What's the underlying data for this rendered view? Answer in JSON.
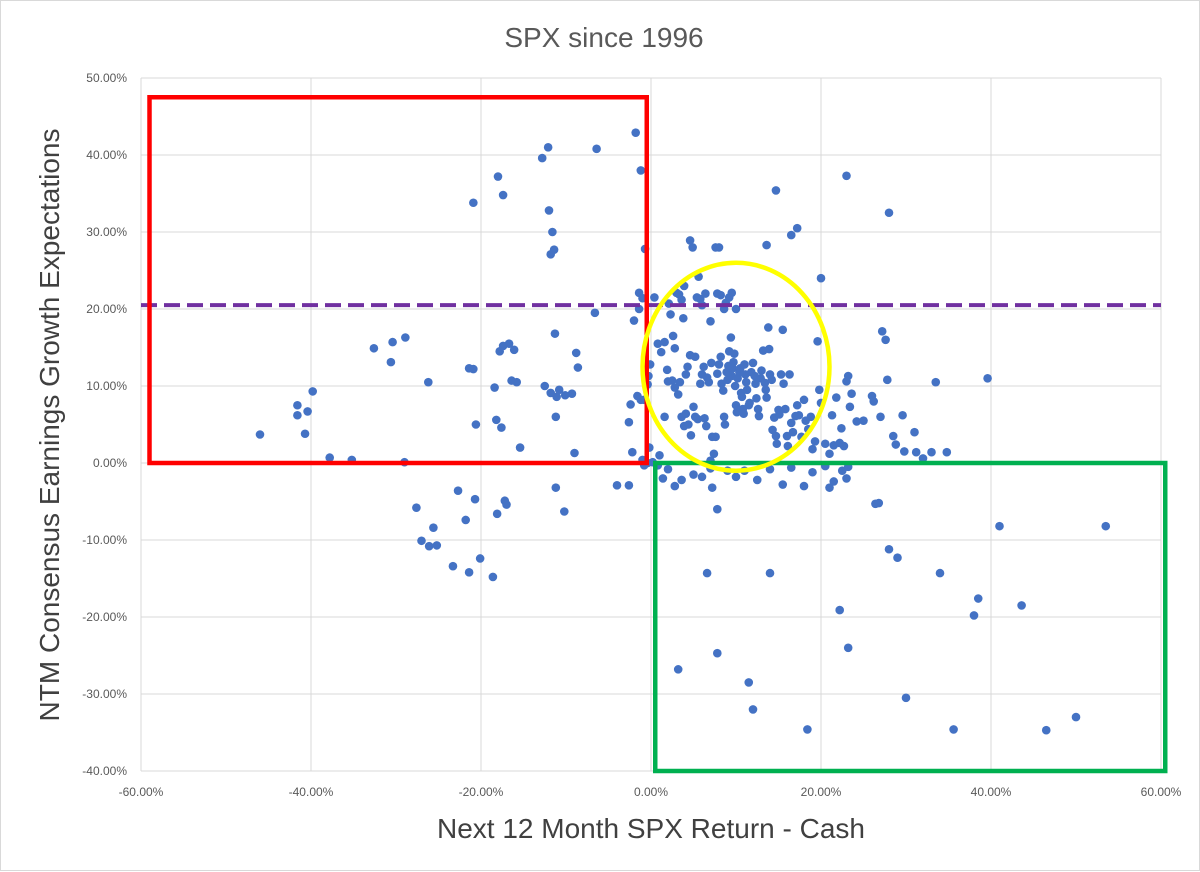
{
  "chart_data": {
    "type": "scatter",
    "title": "SPX since 1996",
    "xlabel": "Next 12 Month SPX Return - Cash",
    "ylabel": "NTM Consensus Earnings Growth Expectations",
    "xlim": [
      -0.6,
      0.6
    ],
    "ylim": [
      -0.4,
      0.5
    ],
    "x_ticks": [
      -0.6,
      -0.4,
      -0.2,
      0.0,
      0.2,
      0.4,
      0.6
    ],
    "x_tick_labels": [
      "-60.00%",
      "-40.00%",
      "-20.00%",
      "0.00%",
      "20.00%",
      "40.00%",
      "60.00%"
    ],
    "y_ticks": [
      -0.4,
      -0.3,
      -0.2,
      -0.1,
      0.0,
      0.1,
      0.2,
      0.3,
      0.4,
      0.5
    ],
    "y_tick_labels": [
      "-40.00%",
      "-30.00%",
      "-20.00%",
      "-10.00%",
      "0.00%",
      "10.00%",
      "20.00%",
      "30.00%",
      "40.00%",
      "50.00%"
    ],
    "grid": true,
    "legend": "none",
    "marker_color": "#4472C4",
    "reference_line": {
      "y": 0.205,
      "style": "dashed",
      "color": "#7030A0"
    },
    "annotations": [
      {
        "shape": "rect",
        "x": [
          -0.59,
          -0.005
        ],
        "y": [
          0.0,
          0.475
        ],
        "color": "#FF0000"
      },
      {
        "shape": "rect",
        "x": [
          0.005,
          0.605
        ],
        "y": [
          -0.4,
          0.0
        ],
        "color": "#00B050"
      },
      {
        "shape": "circle",
        "cx": 0.1,
        "cy": 0.125,
        "rx": 0.11,
        "ry": 0.135,
        "color": "#FFFF00"
      }
    ],
    "points": [
      [
        -0.46,
        0.037
      ],
      [
        -0.416,
        0.075
      ],
      [
        -0.416,
        0.062
      ],
      [
        -0.404,
        0.067
      ],
      [
        -0.398,
        0.093
      ],
      [
        -0.407,
        0.038
      ],
      [
        -0.378,
        0.007
      ],
      [
        -0.352,
        0.004
      ],
      [
        -0.326,
        0.149
      ],
      [
        -0.306,
        0.131
      ],
      [
        -0.304,
        0.157
      ],
      [
        -0.289,
        0.163
      ],
      [
        -0.262,
        0.105
      ],
      [
        -0.29,
        0.001
      ],
      [
        -0.276,
        -0.058
      ],
      [
        -0.27,
        -0.101
      ],
      [
        -0.261,
        -0.108
      ],
      [
        -0.256,
        -0.084
      ],
      [
        -0.252,
        -0.107
      ],
      [
        -0.233,
        -0.134
      ],
      [
        -0.227,
        -0.036
      ],
      [
        -0.218,
        -0.074
      ],
      [
        -0.214,
        -0.142
      ],
      [
        -0.207,
        -0.047
      ],
      [
        -0.201,
        -0.124
      ],
      [
        -0.186,
        -0.148
      ],
      [
        -0.181,
        -0.066
      ],
      [
        -0.172,
        -0.049
      ],
      [
        -0.17,
        -0.054
      ],
      [
        -0.184,
        0.098
      ],
      [
        -0.178,
        0.145
      ],
      [
        -0.174,
        0.152
      ],
      [
        -0.167,
        0.155
      ],
      [
        -0.161,
        0.147
      ],
      [
        -0.164,
        0.107
      ],
      [
        -0.158,
        0.105
      ],
      [
        -0.154,
        0.02
      ],
      [
        -0.214,
        0.123
      ],
      [
        -0.209,
        0.122
      ],
      [
        -0.206,
        0.05
      ],
      [
        -0.182,
        0.056
      ],
      [
        -0.176,
        0.046
      ],
      [
        -0.209,
        0.338
      ],
      [
        -0.18,
        0.372
      ],
      [
        -0.174,
        0.348
      ],
      [
        -0.128,
        0.396
      ],
      [
        -0.121,
        0.41
      ],
      [
        -0.12,
        0.328
      ],
      [
        -0.116,
        0.3
      ],
      [
        -0.118,
        0.271
      ],
      [
        -0.114,
        0.277
      ],
      [
        -0.113,
        0.168
      ],
      [
        -0.125,
        0.1
      ],
      [
        -0.118,
        0.091
      ],
      [
        -0.111,
        0.086
      ],
      [
        -0.108,
        0.095
      ],
      [
        -0.101,
        0.088
      ],
      [
        -0.093,
        0.09
      ],
      [
        -0.088,
        0.143
      ],
      [
        -0.086,
        0.124
      ],
      [
        -0.09,
        0.013
      ],
      [
        -0.112,
        -0.032
      ],
      [
        -0.102,
        -0.063
      ],
      [
        -0.112,
        0.06
      ],
      [
        -0.064,
        0.408
      ],
      [
        -0.066,
        0.195
      ],
      [
        -0.018,
        0.429
      ],
      [
        -0.012,
        0.38
      ],
      [
        -0.007,
        0.278
      ],
      [
        -0.04,
        -0.029
      ],
      [
        -0.026,
        -0.029
      ],
      [
        -0.022,
        0.014
      ],
      [
        -0.026,
        0.053
      ],
      [
        -0.024,
        0.076
      ],
      [
        -0.02,
        0.185
      ],
      [
        -0.014,
        0.2
      ],
      [
        -0.01,
        0.214
      ],
      [
        -0.014,
        0.221
      ],
      [
        -0.008,
        -0.003
      ],
      [
        -0.004,
        0.0
      ],
      [
        -0.002,
        0.02
      ],
      [
        -0.004,
        0.102
      ],
      [
        -0.003,
        0.113
      ],
      [
        -0.001,
        0.128
      ],
      [
        -0.008,
        0.082
      ],
      [
        -0.012,
        0.082
      ],
      [
        -0.016,
        0.087
      ],
      [
        -0.01,
        0.004
      ],
      [
        0.004,
        0.215
      ],
      [
        0.008,
        0.155
      ],
      [
        0.012,
        0.144
      ],
      [
        0.016,
        0.157
      ],
      [
        0.019,
        0.121
      ],
      [
        0.021,
        0.207
      ],
      [
        0.023,
        0.193
      ],
      [
        0.026,
        0.165
      ],
      [
        0.028,
        0.149
      ],
      [
        0.03,
        0.221
      ],
      [
        0.033,
        0.219
      ],
      [
        0.036,
        0.212
      ],
      [
        0.038,
        0.188
      ],
      [
        0.039,
        0.23
      ],
      [
        0.041,
        0.115
      ],
      [
        0.043,
        0.125
      ],
      [
        0.046,
        0.14
      ],
      [
        0.049,
        0.28
      ],
      [
        0.046,
        0.289
      ],
      [
        0.052,
        0.138
      ],
      [
        0.054,
        0.215
      ],
      [
        0.056,
        0.242
      ],
      [
        0.058,
        0.213
      ],
      [
        0.06,
        0.205
      ],
      [
        0.064,
        0.22
      ],
      [
        0.07,
        0.184
      ],
      [
        0.071,
        0.13
      ],
      [
        0.076,
        0.28
      ],
      [
        0.078,
        0.22
      ],
      [
        0.082,
        0.218
      ],
      [
        0.086,
        0.2
      ],
      [
        0.088,
        0.208
      ],
      [
        0.092,
        0.215
      ],
      [
        0.095,
        0.221
      ],
      [
        0.1,
        0.2
      ],
      [
        0.01,
        0.01
      ],
      [
        0.016,
        0.06
      ],
      [
        0.02,
        0.106
      ],
      [
        0.025,
        0.107
      ],
      [
        0.028,
        0.098
      ],
      [
        0.032,
        0.089
      ],
      [
        0.034,
        0.105
      ],
      [
        0.036,
        0.06
      ],
      [
        0.039,
        0.048
      ],
      [
        0.041,
        0.064
      ],
      [
        0.044,
        0.05
      ],
      [
        0.047,
        0.036
      ],
      [
        0.05,
        0.073
      ],
      [
        0.052,
        0.06
      ],
      [
        0.055,
        0.057
      ],
      [
        0.058,
        0.103
      ],
      [
        0.06,
        0.115
      ],
      [
        0.062,
        0.125
      ],
      [
        0.063,
        0.058
      ],
      [
        0.065,
        0.048
      ],
      [
        0.066,
        0.111
      ],
      [
        0.068,
        0.105
      ],
      [
        0.07,
        0.003
      ],
      [
        0.072,
        0.034
      ],
      [
        0.074,
        0.012
      ],
      [
        0.076,
        0.034
      ],
      [
        0.078,
        0.116
      ],
      [
        0.08,
        0.128
      ],
      [
        0.082,
        0.138
      ],
      [
        0.083,
        0.103
      ],
      [
        0.085,
        0.094
      ],
      [
        0.086,
        0.06
      ],
      [
        0.087,
        0.05
      ],
      [
        0.089,
        0.118
      ],
      [
        0.09,
        0.108
      ],
      [
        0.091,
        0.126
      ],
      [
        0.092,
        0.145
      ],
      [
        0.094,
        0.163
      ],
      [
        0.095,
        0.113
      ],
      [
        0.096,
        0.123
      ],
      [
        0.097,
        0.131
      ],
      [
        0.098,
        0.142
      ],
      [
        0.099,
        0.1
      ],
      [
        0.1,
        0.075
      ],
      [
        0.101,
        0.066
      ],
      [
        0.102,
        0.11
      ],
      [
        0.104,
        0.118
      ],
      [
        0.105,
        0.123
      ],
      [
        0.106,
        0.091
      ],
      [
        0.107,
        0.086
      ],
      [
        0.108,
        0.07
      ],
      [
        0.109,
        0.064
      ],
      [
        0.11,
        0.128
      ],
      [
        0.111,
        0.115
      ],
      [
        0.112,
        0.105
      ],
      [
        0.113,
        0.095
      ],
      [
        0.115,
        0.075
      ],
      [
        0.116,
        0.078
      ],
      [
        0.118,
        0.118
      ],
      [
        0.12,
        0.13
      ],
      [
        0.122,
        0.113
      ],
      [
        0.123,
        0.103
      ],
      [
        0.124,
        0.084
      ],
      [
        0.126,
        0.07
      ],
      [
        0.127,
        0.061
      ],
      [
        0.129,
        0.11
      ],
      [
        0.13,
        0.12
      ],
      [
        0.132,
        0.146
      ],
      [
        0.134,
        0.104
      ],
      [
        0.135,
        0.095
      ],
      [
        0.136,
        0.085
      ],
      [
        0.138,
        0.176
      ],
      [
        0.139,
        0.148
      ],
      [
        0.14,
        0.115
      ],
      [
        0.142,
        0.108
      ],
      [
        0.143,
        0.043
      ],
      [
        0.145,
        0.059
      ],
      [
        0.147,
        0.035
      ],
      [
        0.148,
        0.025
      ],
      [
        0.15,
        0.069
      ],
      [
        0.151,
        0.063
      ],
      [
        0.153,
        0.115
      ],
      [
        0.155,
        0.173
      ],
      [
        0.156,
        0.103
      ],
      [
        0.158,
        0.07
      ],
      [
        0.16,
        0.035
      ],
      [
        0.161,
        0.022
      ],
      [
        0.163,
        0.115
      ],
      [
        0.165,
        0.052
      ],
      [
        0.167,
        0.04
      ],
      [
        0.17,
        0.061
      ],
      [
        0.172,
        0.075
      ],
      [
        0.174,
        0.062
      ],
      [
        0.177,
        0.034
      ],
      [
        0.18,
        0.082
      ],
      [
        0.182,
        0.055
      ],
      [
        0.185,
        0.044
      ],
      [
        0.188,
        0.06
      ],
      [
        0.19,
        0.018
      ],
      [
        0.193,
        0.028
      ],
      [
        0.196,
        0.158
      ],
      [
        0.198,
        0.095
      ],
      [
        0.2,
        0.078
      ],
      [
        0.205,
        0.025
      ],
      [
        0.21,
        0.012
      ],
      [
        0.213,
        0.062
      ],
      [
        0.215,
        0.023
      ],
      [
        0.218,
        0.085
      ],
      [
        0.222,
        0.026
      ],
      [
        0.224,
        0.045
      ],
      [
        0.227,
        0.022
      ],
      [
        0.23,
        0.106
      ],
      [
        0.232,
        0.113
      ],
      [
        0.234,
        0.073
      ],
      [
        0.236,
        0.09
      ],
      [
        0.242,
        0.054
      ],
      [
        0.25,
        0.055
      ],
      [
        0.26,
        0.087
      ],
      [
        0.262,
        0.08
      ],
      [
        0.27,
        0.06
      ],
      [
        0.272,
        0.171
      ],
      [
        0.276,
        0.16
      ],
      [
        0.278,
        0.108
      ],
      [
        0.285,
        0.035
      ],
      [
        0.288,
        0.024
      ],
      [
        0.296,
        0.062
      ],
      [
        0.298,
        0.015
      ],
      [
        0.31,
        0.04
      ],
      [
        0.312,
        0.014
      ],
      [
        0.32,
        0.006
      ],
      [
        0.33,
        0.014
      ],
      [
        0.335,
        0.105
      ],
      [
        0.348,
        0.014
      ],
      [
        0.396,
        0.11
      ],
      [
        0.147,
        0.354
      ],
      [
        0.136,
        0.283
      ],
      [
        0.165,
        0.296
      ],
      [
        0.172,
        0.305
      ],
      [
        0.23,
        0.373
      ],
      [
        0.28,
        0.325
      ],
      [
        0.2,
        0.24
      ],
      [
        0.08,
        0.28
      ],
      [
        0.002,
        0.001
      ],
      [
        0.008,
        -0.003
      ],
      [
        0.014,
        -0.02
      ],
      [
        0.02,
        -0.008
      ],
      [
        0.028,
        -0.03
      ],
      [
        0.036,
        -0.022
      ],
      [
        0.05,
        -0.015
      ],
      [
        0.06,
        -0.018
      ],
      [
        0.07,
        -0.007
      ],
      [
        0.072,
        -0.032
      ],
      [
        0.078,
        -0.06
      ],
      [
        0.09,
        -0.01
      ],
      [
        0.1,
        -0.018
      ],
      [
        0.11,
        -0.01
      ],
      [
        0.125,
        -0.022
      ],
      [
        0.14,
        -0.008
      ],
      [
        0.155,
        -0.028
      ],
      [
        0.165,
        -0.006
      ],
      [
        0.18,
        -0.03
      ],
      [
        0.19,
        -0.012
      ],
      [
        0.205,
        -0.004
      ],
      [
        0.21,
        -0.032
      ],
      [
        0.215,
        -0.024
      ],
      [
        0.225,
        -0.01
      ],
      [
        0.23,
        -0.02
      ],
      [
        0.232,
        -0.005
      ],
      [
        0.264,
        -0.053
      ],
      [
        0.268,
        -0.052
      ],
      [
        0.28,
        -0.112
      ],
      [
        0.29,
        -0.123
      ],
      [
        0.032,
        -0.268
      ],
      [
        0.066,
        -0.143
      ],
      [
        0.078,
        -0.247
      ],
      [
        0.115,
        -0.285
      ],
      [
        0.12,
        -0.32
      ],
      [
        0.14,
        -0.143
      ],
      [
        0.184,
        -0.346
      ],
      [
        0.222,
        -0.191
      ],
      [
        0.232,
        -0.24
      ],
      [
        0.3,
        -0.305
      ],
      [
        0.34,
        -0.143
      ],
      [
        0.356,
        -0.346
      ],
      [
        0.38,
        -0.198
      ],
      [
        0.385,
        -0.176
      ],
      [
        0.41,
        -0.082
      ],
      [
        0.436,
        -0.185
      ],
      [
        0.465,
        -0.347
      ],
      [
        0.5,
        -0.33
      ],
      [
        0.535,
        -0.082
      ]
    ]
  }
}
